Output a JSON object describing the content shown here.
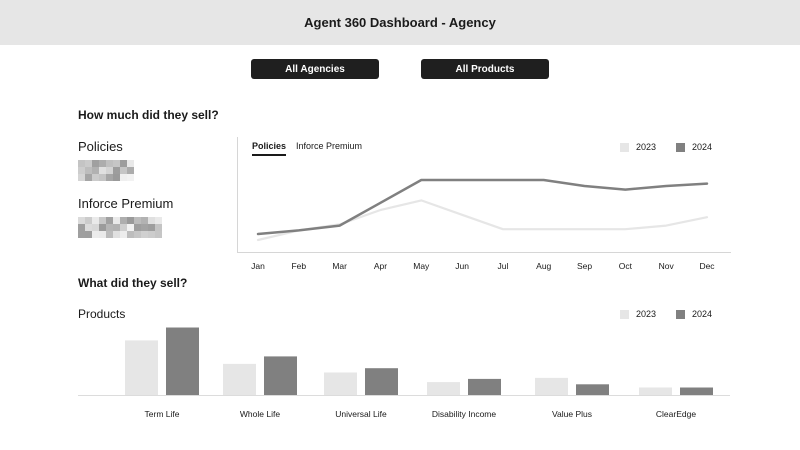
{
  "header": {
    "title": "Agent 360 Dashboard - Agency"
  },
  "filters": {
    "agencies_label": "All Agencies",
    "products_label": "All Products"
  },
  "sales_section": {
    "title": "How much did they sell?",
    "policies_label": "Policies",
    "premium_label": "Inforce Premium"
  },
  "line_chart": {
    "tabs": [
      {
        "label": "Policies",
        "active": true
      },
      {
        "label": "Inforce Premium",
        "active": false
      }
    ]
  },
  "products_section": {
    "title": "What did they sell?",
    "products_label": "Products"
  },
  "colors": {
    "series_2023": "#e6e6e6",
    "series_2024": "#808080",
    "header_bg": "#e6e6e6",
    "button_bg": "#1f1f1f"
  },
  "chart_data": [
    {
      "type": "line",
      "categories": [
        "Jan",
        "Feb",
        "Mar",
        "Apr",
        "May",
        "Jun",
        "Jul",
        "Aug",
        "Sep",
        "Oct",
        "Nov",
        "Dec"
      ],
      "series": [
        {
          "name": "2023",
          "color": "#e6e6e6",
          "values": [
            5,
            13,
            18,
            30,
            38,
            26,
            14,
            14,
            14,
            14,
            17,
            24
          ]
        },
        {
          "name": "2024",
          "color": "#808080",
          "values": [
            10,
            13,
            17,
            36,
            55,
            55,
            55,
            55,
            50,
            47,
            50,
            52
          ]
        }
      ],
      "ylim": [
        0,
        100
      ],
      "legend": "top-right",
      "grid": false
    },
    {
      "type": "bar",
      "categories": [
        "Term Life",
        "Whole Life",
        "Universal Life",
        "Disability Income",
        "Value Plus",
        "ClearEdge"
      ],
      "series": [
        {
          "name": "2023",
          "color": "#e6e6e6",
          "values": [
            51,
            29,
            21,
            12,
            16,
            7
          ]
        },
        {
          "name": "2024",
          "color": "#808080",
          "values": [
            63,
            36,
            25,
            15,
            10,
            7
          ]
        }
      ],
      "ylim": [
        0,
        70
      ],
      "legend": "top-right",
      "grid": false
    }
  ]
}
